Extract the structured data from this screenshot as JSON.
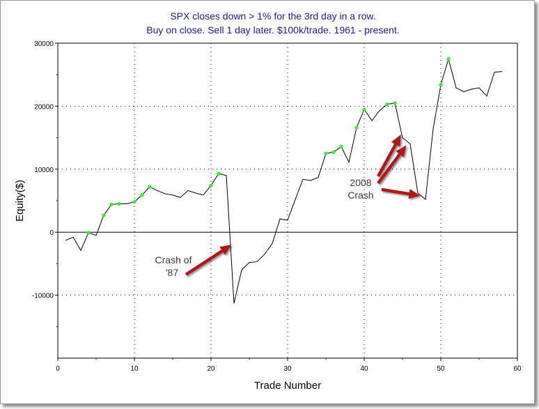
{
  "chart_data": {
    "type": "line",
    "title_lines": [
      "SPX closes down > 1% for the 3rd day in a row.",
      "Buy on close. Sell 1 day later. $100k/trade. 1961 - present."
    ],
    "xlabel": "Trade Number",
    "ylabel": "Equity($)",
    "xlim": [
      0,
      60
    ],
    "ylim": [
      -20000,
      30000
    ],
    "x_ticks": [
      "0",
      "10",
      "20",
      "30",
      "40",
      "50",
      "60"
    ],
    "y_ticks": [
      "30000",
      "20000",
      "10000",
      "0",
      "-10000"
    ],
    "grid": true,
    "series": [
      {
        "color": "#000000",
        "marker_color": "#33ee33",
        "x": [
          1,
          2,
          3,
          4,
          5,
          6,
          7,
          8,
          9,
          10,
          11,
          12,
          13,
          14,
          15,
          16,
          17,
          18,
          19,
          20,
          21,
          22,
          23,
          24,
          25,
          26,
          27,
          28,
          29,
          30,
          31,
          32,
          33,
          34,
          35,
          36,
          37,
          38,
          39,
          40,
          41,
          42,
          43,
          44,
          45,
          46,
          47,
          48,
          49,
          50,
          51,
          52,
          53,
          54,
          55,
          56,
          57,
          58
        ],
        "y": [
          -1300,
          -800,
          -2900,
          -100,
          -500,
          2700,
          4400,
          4500,
          4500,
          4800,
          5900,
          7200,
          6600,
          6100,
          5900,
          5500,
          6600,
          6200,
          5900,
          7400,
          9300,
          9000,
          -11300,
          -6000,
          -4800,
          -4700,
          -3500,
          -1800,
          2100,
          1900,
          5200,
          8400,
          8200,
          8700,
          12500,
          12700,
          13600,
          11100,
          16600,
          19500,
          17700,
          19300,
          20300,
          20500,
          15000,
          14000,
          6200,
          5200,
          16400,
          23400,
          27500,
          22900,
          22300,
          22700,
          22900,
          21600,
          25400,
          25500
        ],
        "markers": [
          4,
          6,
          7,
          8,
          10,
          11,
          12,
          20,
          21,
          35,
          36,
          37,
          39,
          40,
          43,
          44,
          50,
          51
        ]
      }
    ],
    "annotations": [
      {
        "lines": [
          "Crash of",
          "'87"
        ]
      },
      {
        "lines": [
          "2008",
          "Crash"
        ]
      }
    ],
    "colors": {
      "arrow": "#b0141a",
      "title": "#1a1aa0"
    }
  }
}
